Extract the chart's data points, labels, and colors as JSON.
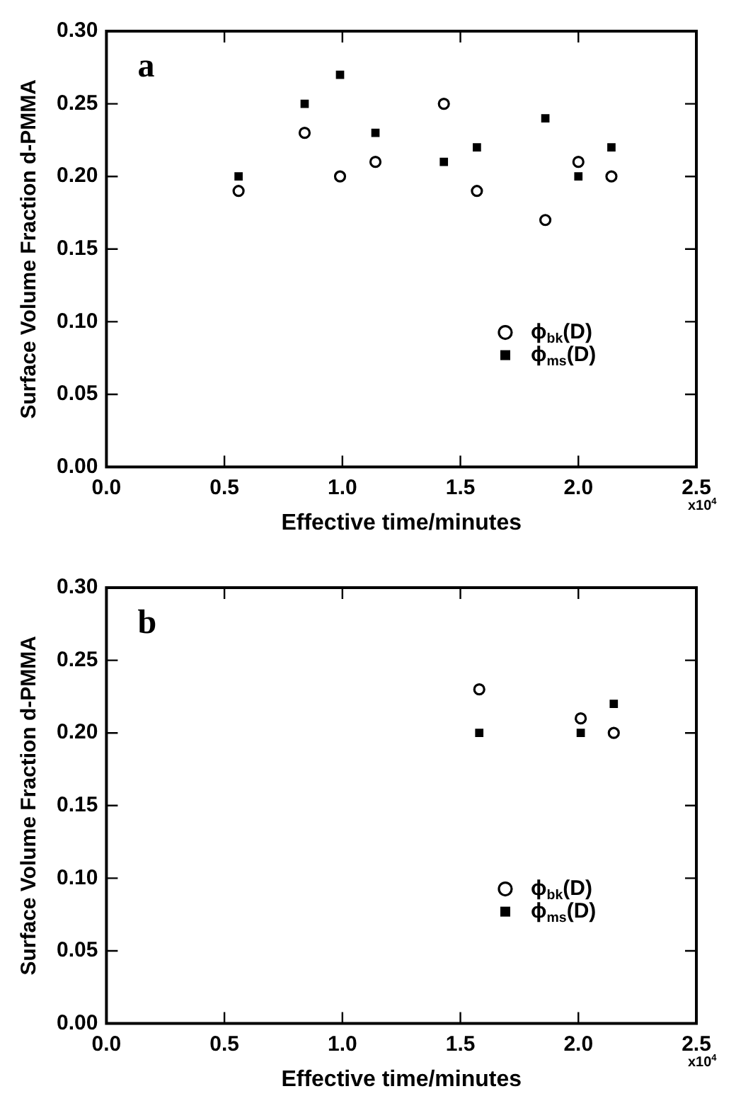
{
  "chart_data": [
    {
      "type": "scatter",
      "title": "a",
      "xlabel": "Effective time/minutes",
      "ylabel": "Surface Volume Fraction d-PMMA",
      "xlim": [
        0,
        2.5
      ],
      "ylim": [
        0,
        0.3
      ],
      "xticks": [
        {
          "value": 0,
          "label": "0.0"
        },
        {
          "value": 0.5,
          "label": "0.5"
        },
        {
          "value": 1,
          "label": "1.0"
        },
        {
          "value": 1.5,
          "label": "1.5"
        },
        {
          "value": 2,
          "label": "2.0"
        },
        {
          "value": 2.5,
          "label": "2.5"
        }
      ],
      "yticks": [
        {
          "value": 0,
          "label": "0.00"
        },
        {
          "value": 0.05,
          "label": "0.05"
        },
        {
          "value": 0.1,
          "label": "0.10"
        },
        {
          "value": 0.15,
          "label": "0.15"
        },
        {
          "value": 0.2,
          "label": "0.20"
        },
        {
          "value": 0.25,
          "label": "0.25"
        },
        {
          "value": 0.3,
          "label": "0.30"
        }
      ],
      "annotations": [
        "x10$^{4}$"
      ],
      "legend": "bottom right",
      "grid": false,
      "series": [
        {
          "name": "ϕ$_{bk}$(D)",
          "color": "#000000",
          "marker": "circle",
          "x": [
            0.56,
            0.84,
            0.99,
            1.14,
            1.43,
            1.57,
            1.86,
            2.0,
            2.14
          ],
          "values": [
            0.19,
            0.23,
            0.2,
            0.21,
            0.25,
            0.19,
            0.17,
            0.21,
            0.2
          ]
        },
        {
          "name": "ϕ$_{ms}$(D)",
          "color": "#000000",
          "marker": "square",
          "x": [
            0.56,
            0.84,
            0.99,
            1.14,
            1.43,
            1.57,
            1.86,
            2.0,
            2.14
          ],
          "values": [
            0.2,
            0.25,
            0.27,
            0.23,
            0.21,
            0.22,
            0.24,
            0.2,
            0.22
          ]
        }
      ]
    },
    {
      "type": "scatter",
      "title": "b",
      "xlabel": "Effective time/minutes",
      "ylabel": "Surface Volume Fraction d-PMMA",
      "xlim": [
        0,
        2.5
      ],
      "ylim": [
        0,
        0.3
      ],
      "xticks": [
        {
          "value": 0,
          "label": "0.0"
        },
        {
          "value": 0.5,
          "label": "0.5"
        },
        {
          "value": 1,
          "label": "1.0"
        },
        {
          "value": 1.5,
          "label": "1.5"
        },
        {
          "value": 2,
          "label": "2.0"
        },
        {
          "value": 2.5,
          "label": "2.5"
        }
      ],
      "yticks": [
        {
          "value": 0,
          "label": "0.00"
        },
        {
          "value": 0.05,
          "label": "0.05"
        },
        {
          "value": 0.1,
          "label": "0.10"
        },
        {
          "value": 0.15,
          "label": "0.15"
        },
        {
          "value": 0.2,
          "label": "0.20"
        },
        {
          "value": 0.25,
          "label": "0.25"
        },
        {
          "value": 0.3,
          "label": "0.30"
        }
      ],
      "annotations": [
        "x10$^{4}$"
      ],
      "legend": "bottom right",
      "grid": false,
      "series": [
        {
          "name": "ϕ$_{bk}$(D)",
          "color": "#000000",
          "marker": "circle",
          "x": [
            1.58,
            2.01,
            2.15
          ],
          "values": [
            0.23,
            0.21,
            0.2
          ]
        },
        {
          "name": "ϕ$_{ms}$(D)",
          "color": "#000000",
          "marker": "square",
          "x": [
            1.58,
            2.01,
            2.15
          ],
          "values": [
            0.2,
            0.2,
            0.22
          ]
        }
      ]
    }
  ]
}
